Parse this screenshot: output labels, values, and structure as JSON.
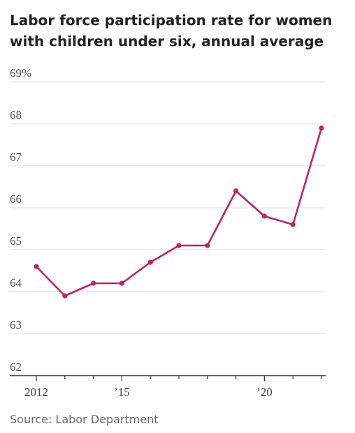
{
  "chart_data": {
    "type": "line",
    "title": "Labor force participation rate for women with children under six, annual average",
    "source": "Source: Labor Department",
    "x": [
      2012,
      2013,
      2014,
      2015,
      2016,
      2017,
      2018,
      2019,
      2020,
      2021,
      2022
    ],
    "series": [
      {
        "values": [
          64.6,
          63.9,
          64.2,
          64.2,
          64.7,
          65.1,
          65.1,
          66.4,
          65.8,
          65.6,
          67.9
        ]
      }
    ],
    "y_ticks": [
      62,
      63,
      64,
      65,
      66,
      67,
      68,
      69
    ],
    "y_tick_labels": [
      "62",
      "63",
      "64",
      "65",
      "66",
      "67",
      "68",
      "69%"
    ],
    "x_tick_labels": [
      {
        "x": 2012,
        "label": "2012"
      },
      {
        "x": 2015,
        "label": "’15"
      },
      {
        "x": 2020,
        "label": "’20"
      }
    ],
    "ylim": [
      62,
      69
    ],
    "xlim": [
      2012,
      2022
    ],
    "grid": true,
    "line_color": "#b5266d",
    "grid_color": "#dcdcdc",
    "axis_color": "#333333"
  }
}
